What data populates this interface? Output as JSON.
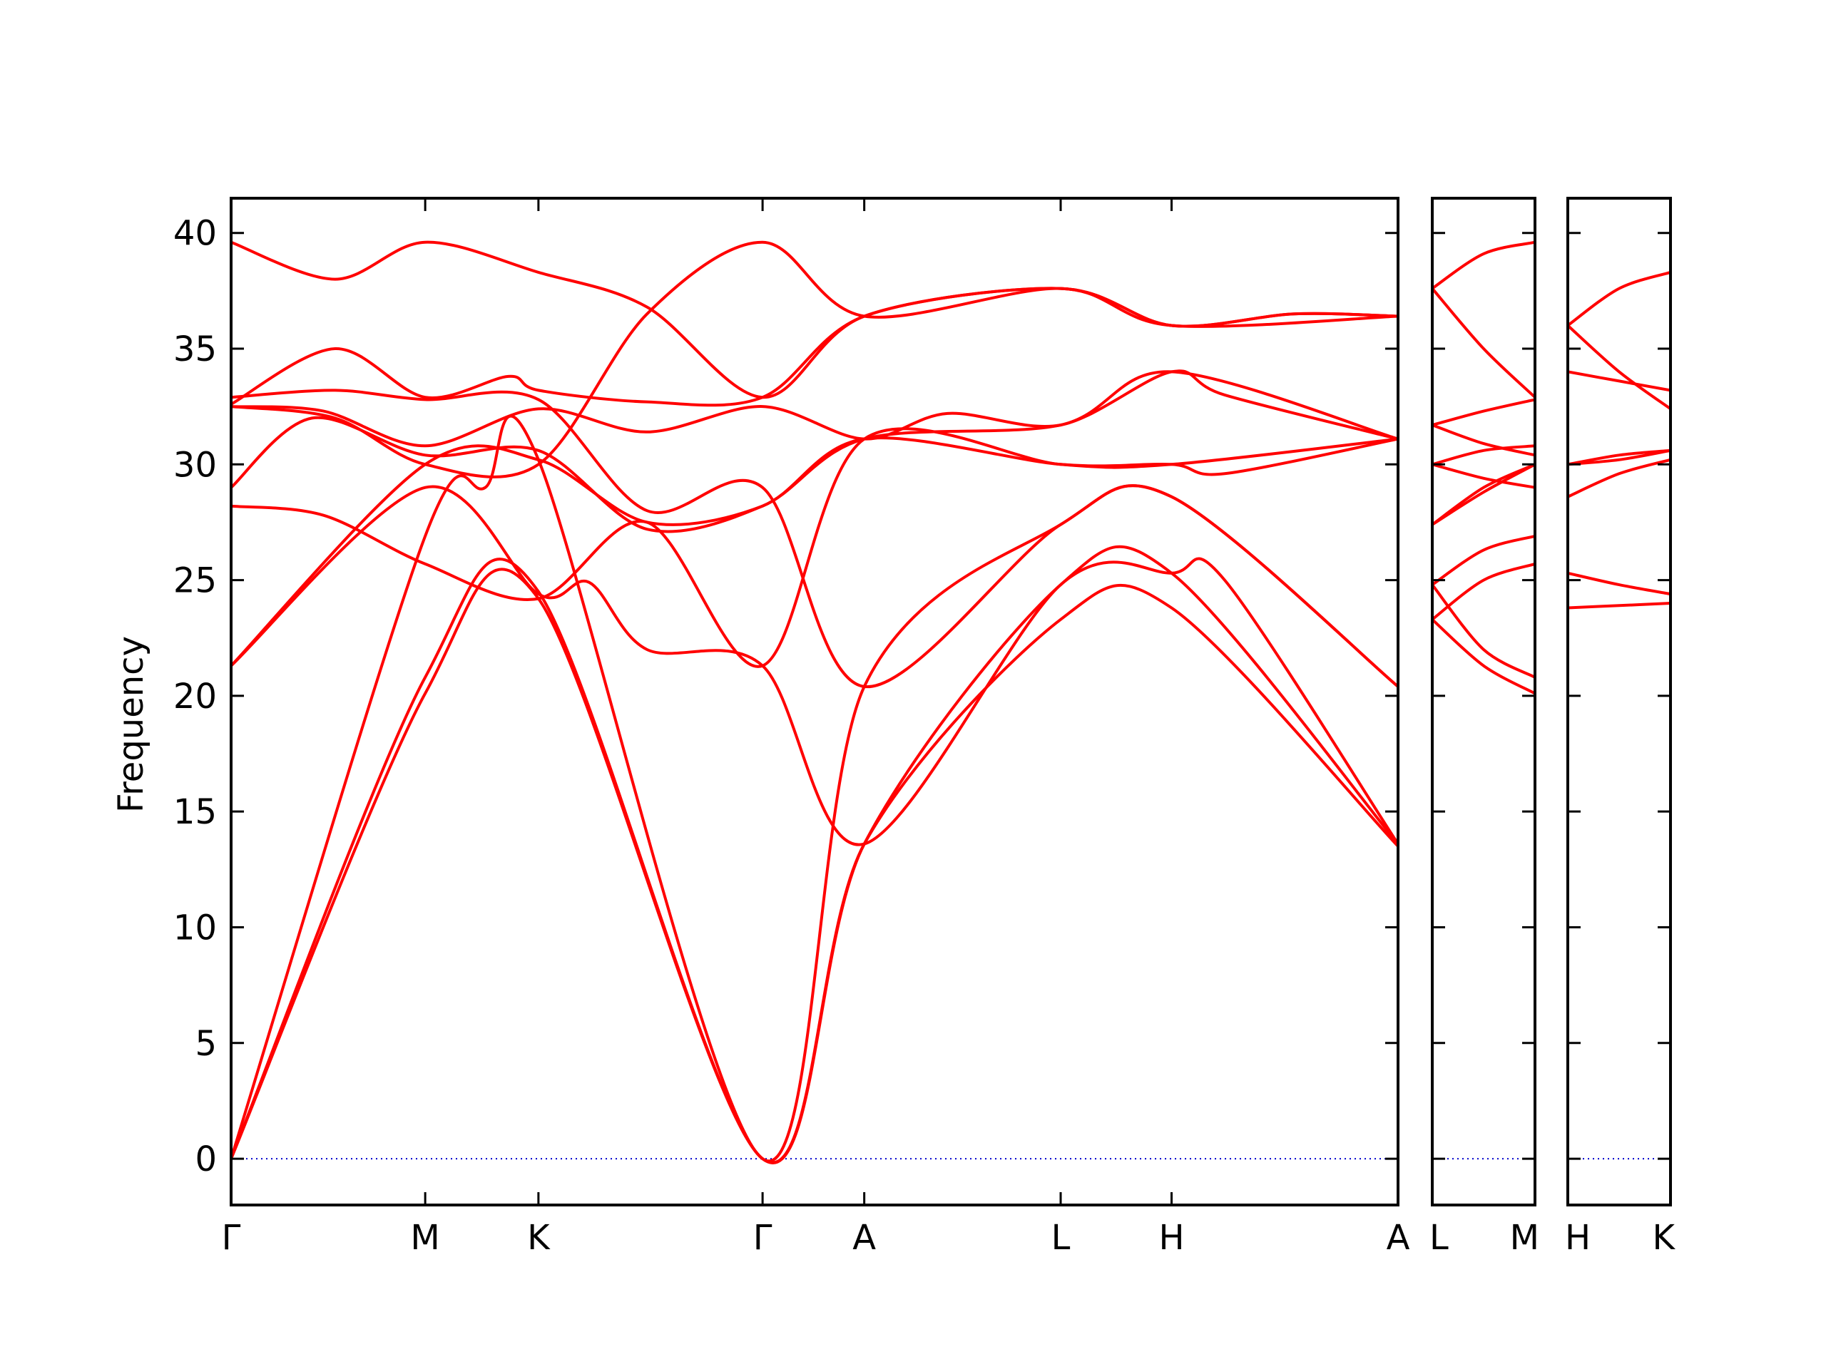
{
  "chart_data": {
    "type": "line",
    "ylabel": "Frequency",
    "ylim": [
      -2,
      41.5
    ],
    "yticks": [
      0,
      5,
      10,
      15,
      20,
      25,
      30,
      35,
      40
    ],
    "grid": false,
    "colors": {
      "bands": "#ff0000",
      "zero_line": "#0000cc",
      "axes": "#000000"
    },
    "panels": [
      {
        "name": "main",
        "x_range": [
          0,
          5.05
        ],
        "ticks": [
          {
            "x": 0,
            "label": "Γ"
          },
          {
            "x": 0.84,
            "label": "M"
          },
          {
            "x": 1.33,
            "label": "K"
          },
          {
            "x": 2.3,
            "label": "Γ"
          },
          {
            "x": 2.74,
            "label": "A"
          },
          {
            "x": 3.59,
            "label": "L"
          },
          {
            "x": 4.07,
            "label": "H"
          },
          {
            "x": 5.05,
            "label": "A"
          }
        ],
        "bands": [
          {
            "x": [
              0,
              0.84,
              1.33,
              2.3,
              2.74,
              3.59,
              4.07,
              5.05
            ],
            "y": [
              0,
              20.1,
              24.2,
              0,
              13.6,
              23.3,
              23.8,
              13.5
            ]
          },
          {
            "x": [
              0,
              0.84,
              1.33,
              2.3,
              2.74,
              3.59,
              4.07,
              5.05
            ],
            "y": [
              0,
              20.8,
              24.5,
              0,
              13.6,
              24.8,
              25.3,
              13.6
            ]
          },
          {
            "x": [
              0,
              0.84,
              1.1,
              1.33,
              2.3,
              2.74,
              3.59,
              4.07,
              5.05
            ],
            "y": [
              0,
              26.9,
              29.0,
              30.2,
              0,
              20.4,
              27.4,
              28.6,
              20.4
            ]
          },
          {
            "x": [
              0,
              0.84,
              1.33,
              1.55,
              1.8,
              2.3,
              2.74,
              3.59,
              4.07,
              4.3,
              5.05
            ],
            "y": [
              21.3,
              29.0,
              24.4,
              24.9,
              22.0,
              21.3,
              13.6,
              24.8,
              25.3,
              25.0,
              13.6
            ]
          },
          {
            "x": [
              0,
              0.84,
              1.33,
              1.8,
              2.3,
              2.74,
              3.59,
              4.07,
              4.3,
              5.05
            ],
            "y": [
              21.3,
              30.0,
              30.2,
              27.5,
              28.2,
              31.1,
              30.0,
              30.0,
              29.6,
              31.1
            ]
          },
          {
            "x": [
              0,
              0.4,
              0.84,
              1.33,
              1.8,
              2.3,
              2.74,
              3.59,
              4.07,
              5.05
            ],
            "y": [
              28.2,
              27.8,
              25.7,
              24.2,
              27.5,
              21.3,
              31.1,
              30.0,
              30.0,
              31.1
            ]
          },
          {
            "x": [
              0,
              0.35,
              0.84,
              1.33,
              1.8,
              2.3,
              2.74,
              3.59,
              4.07,
              5.05
            ],
            "y": [
              29.0,
              32.0,
              30.4,
              30.6,
              27.2,
              28.2,
              31.1,
              31.7,
              34.0,
              31.1
            ]
          },
          {
            "x": [
              0,
              0.4,
              0.84,
              1.33,
              1.8,
              2.3,
              2.74,
              3.1,
              3.59,
              4.07,
              4.3,
              5.05
            ],
            "y": [
              32.5,
              32.3,
              30.8,
              32.4,
              31.4,
              32.5,
              31.1,
              32.2,
              31.7,
              34.0,
              33.0,
              31.1
            ]
          },
          {
            "x": [
              0,
              0.45,
              0.84,
              1.33,
              1.8,
              2.3,
              2.74,
              3.59,
              4.07,
              5.05
            ],
            "y": [
              32.9,
              33.2,
              32.8,
              32.8,
              28.0,
              29.0,
              20.4,
              27.4,
              28.6,
              20.4
            ]
          },
          {
            "x": [
              0,
              0.45,
              0.84,
              1.2,
              1.33,
              1.8,
              2.3,
              2.74,
              3.59,
              4.07,
              5.05
            ],
            "y": [
              32.6,
              35.0,
              32.9,
              33.8,
              33.2,
              32.7,
              32.9,
              36.4,
              37.6,
              36.0,
              36.4
            ]
          },
          {
            "x": [
              0,
              0.45,
              0.84,
              1.33,
              1.8,
              2.3,
              2.74,
              3.59,
              4.07,
              4.6,
              5.05
            ],
            "y": [
              39.6,
              38.0,
              39.6,
              38.3,
              36.8,
              32.9,
              36.4,
              37.6,
              36.0,
              36.5,
              36.4
            ]
          },
          {
            "x": [
              0,
              0.45,
              0.84,
              1.33,
              1.8,
              2.3,
              2.74,
              3.59,
              4.07,
              4.6,
              5.05
            ],
            "y": [
              32.5,
              32.0,
              30.0,
              30.0,
              36.5,
              39.6,
              36.4,
              37.6,
              36.0,
              36.5,
              36.4
            ]
          }
        ]
      },
      {
        "name": "L-M",
        "x_range": [
          0,
          0.44
        ],
        "ticks": [
          {
            "x": 0,
            "label": "L"
          },
          {
            "x": 0.44,
            "label": "M"
          }
        ],
        "bands": [
          {
            "x": [
              0,
              0.22,
              0.44
            ],
            "y": [
              23.3,
              21.3,
              20.1
            ]
          },
          {
            "x": [
              0,
              0.22,
              0.44
            ],
            "y": [
              24.8,
              22.0,
              20.8
            ]
          },
          {
            "x": [
              0,
              0.22,
              0.44
            ],
            "y": [
              23.3,
              25.0,
              25.7
            ]
          },
          {
            "x": [
              0,
              0.22,
              0.44
            ],
            "y": [
              24.8,
              26.3,
              26.9
            ]
          },
          {
            "x": [
              0,
              0.22,
              0.44
            ],
            "y": [
              27.4,
              29.0,
              30.0
            ]
          },
          {
            "x": [
              0,
              0.22,
              0.44
            ],
            "y": [
              27.4,
              28.8,
              30.0
            ]
          },
          {
            "x": [
              0,
              0.22,
              0.44
            ],
            "y": [
              30.0,
              29.4,
              29.0
            ]
          },
          {
            "x": [
              0,
              0.22,
              0.44
            ],
            "y": [
              30.0,
              30.6,
              30.8
            ]
          },
          {
            "x": [
              0,
              0.22,
              0.44
            ],
            "y": [
              31.7,
              30.9,
              30.4
            ]
          },
          {
            "x": [
              0,
              0.22,
              0.44
            ],
            "y": [
              31.7,
              32.3,
              32.8
            ]
          },
          {
            "x": [
              0,
              0.22,
              0.44
            ],
            "y": [
              37.6,
              35.0,
              32.9
            ]
          },
          {
            "x": [
              0,
              0.22,
              0.44
            ],
            "y": [
              37.6,
              39.1,
              39.6
            ]
          }
        ]
      },
      {
        "name": "H-K",
        "x_range": [
          0,
          0.44
        ],
        "ticks": [
          {
            "x": 0,
            "label": "H"
          },
          {
            "x": 0.44,
            "label": "K"
          }
        ],
        "bands": [
          {
            "x": [
              0,
              0.22,
              0.44
            ],
            "y": [
              23.8,
              23.9,
              24.0
            ]
          },
          {
            "x": [
              0,
              0.22,
              0.44
            ],
            "y": [
              25.3,
              24.8,
              24.4
            ]
          },
          {
            "x": [
              0,
              0.22,
              0.44
            ],
            "y": [
              28.6,
              29.6,
              30.2
            ]
          },
          {
            "x": [
              0,
              0.22,
              0.44
            ],
            "y": [
              30.0,
              30.2,
              30.6
            ]
          },
          {
            "x": [
              0,
              0.22,
              0.44
            ],
            "y": [
              30.0,
              30.4,
              30.6
            ]
          },
          {
            "x": [
              0,
              0.22,
              0.44
            ],
            "y": [
              34.0,
              33.6,
              33.2
            ]
          },
          {
            "x": [
              0,
              0.22,
              0.44
            ],
            "y": [
              36.0,
              34.0,
              32.4
            ]
          },
          {
            "x": [
              0,
              0.22,
              0.44
            ],
            "y": [
              36.0,
              37.6,
              38.3
            ]
          }
        ]
      }
    ]
  }
}
